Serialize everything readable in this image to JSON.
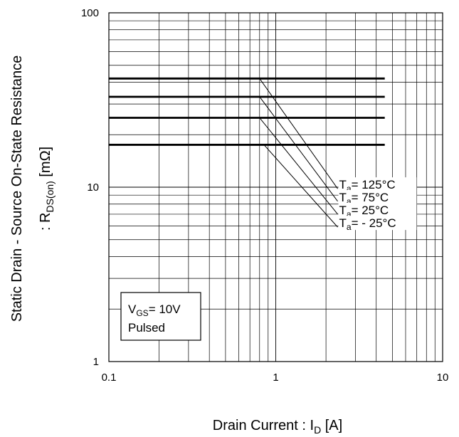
{
  "chart_data": {
    "type": "line",
    "title": "",
    "xlabel": {
      "main": "Drain Current : I",
      "sub": "D",
      "unit": " [A]"
    },
    "ylabel": {
      "line1": "Static Drain - Source On-State Resistance",
      "line2_prefix": ": R",
      "line2_sub": "DS(on)",
      "line2_suffix": " [mΩ]"
    },
    "xscale": "log",
    "yscale": "log",
    "xlim": [
      0.1,
      10
    ],
    "ylim": [
      1,
      100
    ],
    "x_ticks": [
      {
        "value": 0.1,
        "label": "0.1"
      },
      {
        "value": 1,
        "label": "1"
      },
      {
        "value": 10,
        "label": "10"
      }
    ],
    "y_ticks": [
      {
        "value": 1,
        "label": "1"
      },
      {
        "value": 10,
        "label": "10"
      },
      {
        "value": 100,
        "label": "100"
      }
    ],
    "grid": true,
    "series": [
      {
        "name": {
          "prefix": "T",
          "sub": "a",
          "text": "= 125°C"
        },
        "x": [
          0.1,
          4.5
        ],
        "y": [
          42,
          42
        ]
      },
      {
        "name": {
          "prefix": "T",
          "sub": "a",
          "text": "= 75°C"
        },
        "x": [
          0.1,
          4.5
        ],
        "y": [
          33,
          33
        ]
      },
      {
        "name": {
          "prefix": "T",
          "sub": "a",
          "text": "= 25°C"
        },
        "x": [
          0.1,
          4.5
        ],
        "y": [
          25,
          25
        ]
      },
      {
        "name": {
          "prefix": "T",
          "sub": "a",
          "text": "= - 25°C"
        },
        "x": [
          0.1,
          4.5
        ],
        "y": [
          17.5,
          17.5
        ]
      }
    ],
    "leaders": [
      {
        "x": [
          0.8,
          2.35
        ],
        "y": [
          42,
          9.8
        ]
      },
      {
        "x": [
          0.8,
          2.35
        ],
        "y": [
          33,
          8.3
        ]
      },
      {
        "x": [
          0.8,
          2.35
        ],
        "y": [
          25,
          7.0
        ]
      },
      {
        "x": [
          0.85,
          2.35
        ],
        "y": [
          17.5,
          5.9
        ]
      }
    ],
    "condition_box": {
      "prefix": "V",
      "sub": "GS",
      "text": "= 10V",
      "line2": "Pulsed"
    }
  }
}
